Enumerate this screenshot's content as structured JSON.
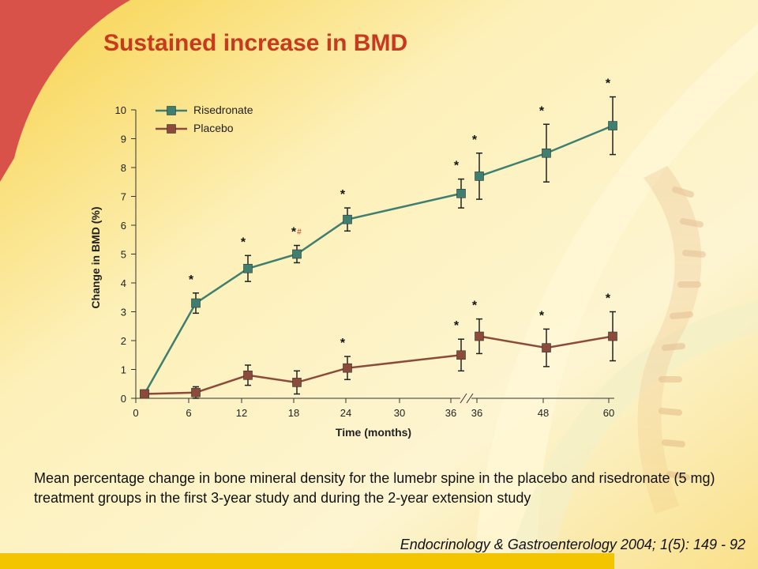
{
  "slide": {
    "title": "Sustained increase in BMD",
    "caption": "Mean percentage change in bone mineral density for the lumebr spine in the placebo and risedronate (5 mg) treatment groups in the first 3-year study and during the 2-year extension study",
    "citation": "Endocrinology & Gastroenterology 2004; 1(5): 149 - 92"
  },
  "colors": {
    "title": "#c8391d",
    "risedronate": "#3f7f6f",
    "placebo": "#8b4a3a",
    "hash_mark": "#c0392b",
    "background_light": "#fdf3c8",
    "background_yellow": "#f6c83a",
    "corner_red": "#d9524a",
    "bottom_bar": "#f3c400"
  },
  "chart_data": {
    "type": "line",
    "title": "",
    "xlabel": "Time  (months)",
    "ylabel": "Change in BMD (%)",
    "ylim": [
      0,
      10
    ],
    "y_ticks": [
      "0",
      "1",
      "2",
      "3",
      "4",
      "5",
      "6",
      "7",
      "8",
      "9",
      "10"
    ],
    "x_ticks": [
      "0",
      "6",
      "12",
      "18",
      "24",
      "30",
      "36",
      "36",
      "48",
      "60"
    ],
    "x_axis_break_after": "36",
    "legend": {
      "position": "top-left"
    },
    "series": [
      {
        "name": "Risedronate",
        "color_key": "risedronate",
        "marker": "square",
        "points": [
          {
            "x": "0",
            "y": 0.15,
            "err": null,
            "marks": ""
          },
          {
            "x": "6",
            "y": 3.3,
            "err": 0.35,
            "marks": "*"
          },
          {
            "x": "12",
            "y": 4.5,
            "err": 0.45,
            "marks": "*"
          },
          {
            "x": "18",
            "y": 5.0,
            "err": 0.3,
            "marks": "*",
            "extra_mark": "#"
          },
          {
            "x": "24",
            "y": 6.2,
            "err": 0.4,
            "marks": "*"
          },
          {
            "x": "36",
            "y": 7.1,
            "err": 0.5,
            "marks": "*"
          },
          {
            "x": "36 (extension)",
            "y": 7.7,
            "err": 0.8,
            "marks": "*"
          },
          {
            "x": "48",
            "y": 8.5,
            "err": 1.0,
            "marks": "*"
          },
          {
            "x": "60",
            "y": 9.45,
            "err": 1.0,
            "marks": "*"
          }
        ]
      },
      {
        "name": "Placebo",
        "color_key": "placebo",
        "marker": "square",
        "points": [
          {
            "x": "0",
            "y": 0.15,
            "err": null,
            "marks": ""
          },
          {
            "x": "6",
            "y": 0.2,
            "err": 0.2,
            "marks": ""
          },
          {
            "x": "12",
            "y": 0.8,
            "err": 0.35,
            "marks": ""
          },
          {
            "x": "18",
            "y": 0.55,
            "err": 0.4,
            "marks": ""
          },
          {
            "x": "24",
            "y": 1.05,
            "err": 0.4,
            "marks": "*"
          },
          {
            "x": "36",
            "y": 1.5,
            "err": 0.55,
            "marks": "*"
          },
          {
            "x": "36 (extension)",
            "y": 2.15,
            "err": 0.6,
            "marks": "*"
          },
          {
            "x": "48",
            "y": 1.75,
            "err": 0.65,
            "marks": "*"
          },
          {
            "x": "60",
            "y": 2.15,
            "err": 0.85,
            "marks": "*"
          }
        ]
      }
    ]
  }
}
